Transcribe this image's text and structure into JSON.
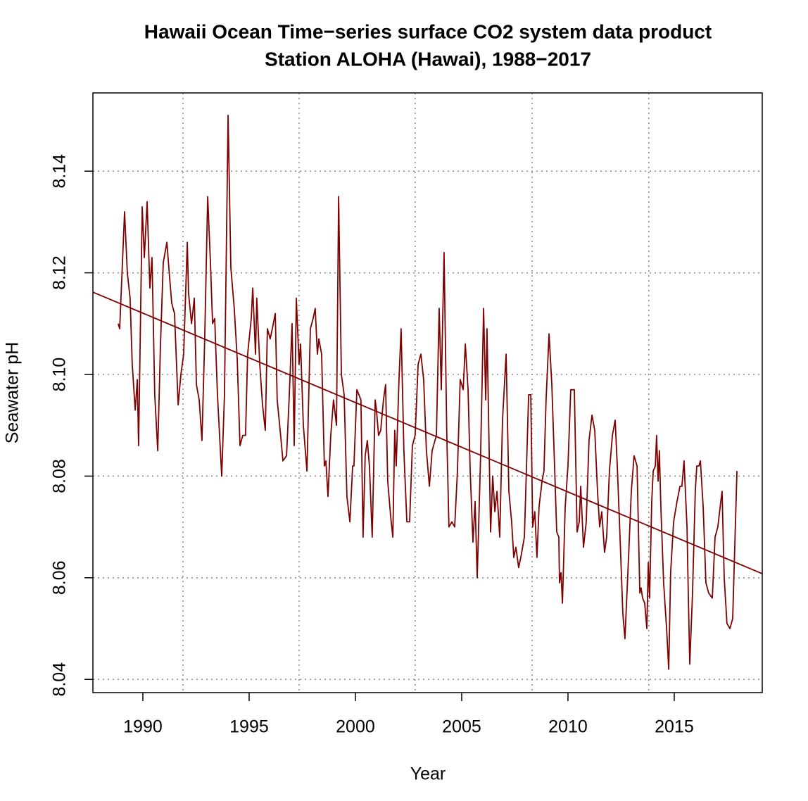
{
  "chart_data": {
    "type": "line",
    "title": "Hawaii Ocean Time−series surface CO2 system data product",
    "subtitle": "Station ALOHA (Hawai), 1988−2017",
    "xlabel": "Year",
    "ylabel": "Seawater pH",
    "xlim": [
      1987.65,
      2019.14
    ],
    "ylim": [
      8.0374,
      8.1554
    ],
    "xticks": [
      1990,
      1995,
      2000,
      2005,
      2010,
      2015
    ],
    "yticks": [
      8.04,
      8.06,
      8.08,
      {
        "value": 8.1,
        "label": "8.10"
      },
      8.12,
      8.14
    ],
    "grid": true,
    "xgrid": [
      1991.89,
      1997.35,
      2002.81,
      2008.31,
      2013.8
    ],
    "series": [
      {
        "color": "#7f0000",
        "x": [
          1988.84,
          1988.91,
          1989.14,
          1989.27,
          1989.4,
          1989.5,
          1989.64,
          1989.74,
          1989.8,
          1989.97,
          1990.07,
          1990.2,
          1990.33,
          1990.43,
          1990.56,
          1990.7,
          1990.83,
          1990.96,
          1991.13,
          1991.26,
          1991.36,
          1991.49,
          1991.66,
          1991.79,
          1991.92,
          1992.09,
          1992.15,
          1992.29,
          1992.42,
          1992.52,
          1992.65,
          1992.78,
          1992.91,
          1993.05,
          1993.18,
          1993.28,
          1993.38,
          1993.51,
          1993.71,
          1993.84,
          1994.01,
          1994.14,
          1994.3,
          1994.44,
          1994.57,
          1994.7,
          1994.83,
          1994.93,
          1995.1,
          1995.17,
          1995.3,
          1995.36,
          1995.5,
          1995.63,
          1995.76,
          1995.86,
          1995.99,
          1996.09,
          1996.23,
          1996.32,
          1996.46,
          1996.59,
          1996.76,
          1996.89,
          1997.02,
          1997.12,
          1997.22,
          1997.35,
          1997.42,
          1997.55,
          1997.72,
          1997.88,
          1998.01,
          1998.11,
          1998.21,
          1998.28,
          1998.41,
          1998.54,
          1998.61,
          1998.71,
          1998.84,
          1998.97,
          1999.11,
          1999.21,
          1999.34,
          1999.47,
          1999.6,
          1999.74,
          1999.87,
          1999.93,
          2000.07,
          2000.26,
          2000.36,
          2000.46,
          2000.56,
          2000.66,
          2000.79,
          2000.93,
          2000.99,
          2001.09,
          2001.19,
          2001.32,
          2001.42,
          2001.52,
          2001.66,
          2001.76,
          2001.85,
          2001.92,
          2002.05,
          2002.15,
          2002.28,
          2002.42,
          2002.55,
          2002.68,
          2002.81,
          2002.95,
          2003.08,
          2003.21,
          2003.34,
          2003.48,
          2003.61,
          2003.81,
          2003.94,
          2004.04,
          2004.17,
          2004.3,
          2004.4,
          2004.54,
          2004.67,
          2004.8,
          2004.93,
          2005.07,
          2005.17,
          2005.3,
          2005.4,
          2005.53,
          2005.63,
          2005.73,
          2005.89,
          2006.03,
          2006.13,
          2006.19,
          2006.36,
          2006.46,
          2006.56,
          2006.66,
          2006.79,
          2006.92,
          2007.09,
          2007.22,
          2007.35,
          2007.45,
          2007.55,
          2007.68,
          2007.78,
          2007.95,
          2008.05,
          2008.15,
          2008.25,
          2008.34,
          2008.44,
          2008.54,
          2008.64,
          2008.78,
          2008.87,
          2008.97,
          2009.11,
          2009.24,
          2009.37,
          2009.47,
          2009.57,
          2009.6,
          2009.67,
          2009.74,
          2009.87,
          2010.0,
          2010.13,
          2010.3,
          2010.43,
          2010.53,
          2010.6,
          2010.73,
          2010.86,
          2010.99,
          2011.13,
          2011.26,
          2011.39,
          2011.49,
          2011.59,
          2011.72,
          2011.82,
          2011.95,
          2012.09,
          2012.22,
          2012.32,
          2012.45,
          2012.58,
          2012.68,
          2012.85,
          2012.98,
          2013.11,
          2013.25,
          2013.38,
          2013.44,
          2013.51,
          2013.61,
          2013.71,
          2013.78,
          2013.84,
          2013.94,
          2014.01,
          2014.11,
          2014.17,
          2014.24,
          2014.3,
          2014.37,
          2014.5,
          2014.64,
          2014.74,
          2014.83,
          2014.97,
          2015.13,
          2015.27,
          2015.36,
          2015.46,
          2015.6,
          2015.66,
          2015.73,
          2015.86,
          2015.99,
          2016.06,
          2016.16,
          2016.23,
          2016.36,
          2016.49,
          2016.62,
          2016.79,
          2016.92,
          2017.05,
          2017.19,
          2017.25,
          2017.35,
          2017.48,
          2017.62,
          2017.75,
          2017.95
        ],
        "values": [
          8.11,
          8.109,
          8.132,
          8.12,
          8.115,
          8.102,
          8.093,
          8.099,
          8.086,
          8.133,
          8.123,
          8.134,
          8.117,
          8.123,
          8.096,
          8.085,
          8.106,
          8.122,
          8.126,
          8.119,
          8.114,
          8.112,
          8.094,
          8.1,
          8.104,
          8.126,
          8.116,
          8.11,
          8.115,
          8.098,
          8.095,
          8.087,
          8.107,
          8.135,
          8.122,
          8.11,
          8.111,
          8.096,
          8.08,
          8.096,
          8.151,
          8.121,
          8.113,
          8.103,
          8.086,
          8.088,
          8.088,
          8.104,
          8.111,
          8.117,
          8.104,
          8.115,
          8.102,
          8.094,
          8.089,
          8.109,
          8.107,
          8.109,
          8.112,
          8.095,
          8.089,
          8.083,
          8.084,
          8.096,
          8.11,
          8.086,
          8.115,
          8.102,
          8.106,
          8.09,
          8.081,
          8.109,
          8.111,
          8.113,
          8.104,
          8.107,
          8.104,
          8.082,
          8.083,
          8.076,
          8.088,
          8.095,
          8.09,
          8.135,
          8.1,
          8.096,
          8.076,
          8.071,
          8.082,
          8.082,
          8.097,
          8.095,
          8.068,
          8.084,
          8.087,
          8.082,
          8.068,
          8.095,
          8.093,
          8.088,
          8.089,
          8.095,
          8.098,
          8.079,
          8.072,
          8.068,
          8.089,
          8.082,
          8.099,
          8.109,
          8.085,
          8.071,
          8.071,
          8.086,
          8.088,
          8.102,
          8.104,
          8.099,
          8.085,
          8.078,
          8.085,
          8.088,
          8.113,
          8.097,
          8.124,
          8.088,
          8.07,
          8.071,
          8.07,
          8.081,
          8.099,
          8.097,
          8.106,
          8.097,
          8.081,
          8.067,
          8.075,
          8.06,
          8.084,
          8.113,
          8.095,
          8.109,
          8.069,
          8.08,
          8.073,
          8.077,
          8.068,
          8.091,
          8.104,
          8.077,
          8.071,
          8.064,
          8.066,
          8.062,
          8.064,
          8.068,
          8.082,
          8.096,
          8.096,
          8.07,
          8.073,
          8.064,
          8.074,
          8.079,
          8.081,
          8.095,
          8.108,
          8.098,
          8.082,
          8.069,
          8.068,
          8.059,
          8.061,
          8.055,
          8.074,
          8.082,
          8.097,
          8.097,
          8.069,
          8.071,
          8.078,
          8.066,
          8.071,
          8.087,
          8.092,
          8.089,
          8.077,
          8.07,
          8.073,
          8.065,
          8.068,
          8.081,
          8.088,
          8.091,
          8.082,
          8.068,
          8.053,
          8.048,
          8.064,
          8.077,
          8.084,
          8.082,
          8.057,
          8.058,
          8.056,
          8.055,
          8.05,
          8.063,
          8.056,
          8.075,
          8.081,
          8.082,
          8.088,
          8.079,
          8.085,
          8.074,
          8.059,
          8.05,
          8.042,
          8.061,
          8.071,
          8.075,
          8.078,
          8.078,
          8.083,
          8.07,
          8.057,
          8.043,
          8.057,
          8.077,
          8.082,
          8.082,
          8.083,
          8.074,
          8.059,
          8.057,
          8.056,
          8.068,
          8.07,
          8.075,
          8.077,
          8.06,
          8.051,
          8.05,
          8.052,
          8.081
        ]
      },
      {
        "color": "#7f0000",
        "x": [
          1987.65,
          2019.14
        ],
        "values": [
          8.1162,
          8.0608
        ]
      }
    ]
  }
}
